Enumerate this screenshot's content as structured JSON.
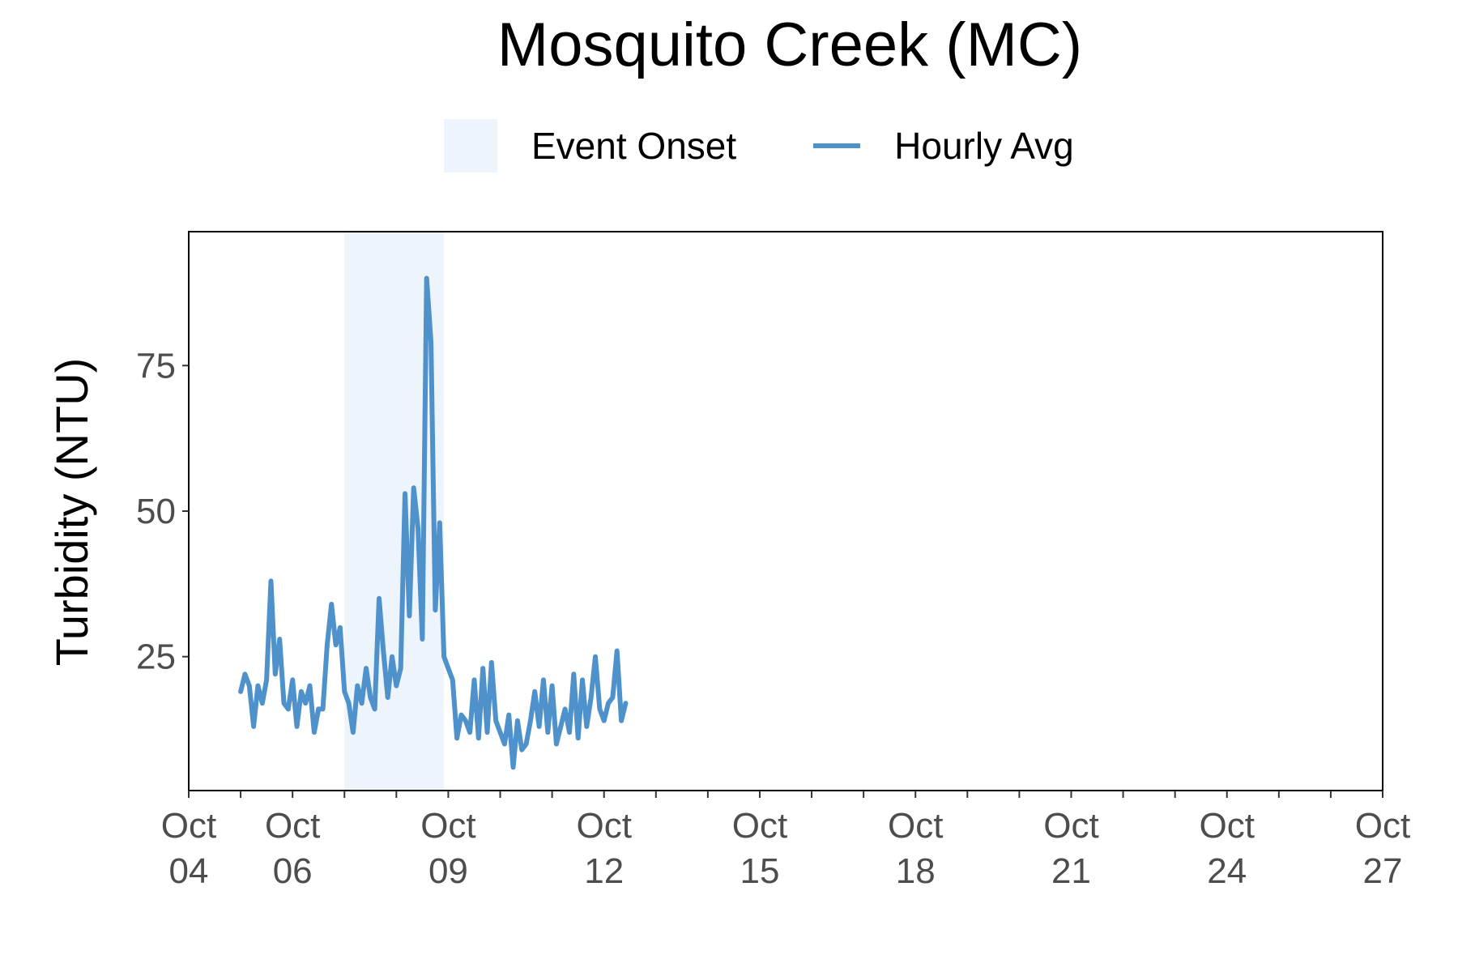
{
  "chart_data": {
    "type": "line",
    "title": "Mosquito Creek (MC)",
    "xlabel": "",
    "ylabel": "Turbidity (NTU)",
    "xlim": [
      "2023-10-04",
      "2023-10-27"
    ],
    "ylim": [
      2,
      98
    ],
    "y_ticks": [
      25,
      50,
      75
    ],
    "x_ticks": [
      {
        "date": "2023-10-04",
        "label": "Oct\n04"
      },
      {
        "date": "2023-10-06",
        "label": "Oct\n06"
      },
      {
        "date": "2023-10-09",
        "label": "Oct\n09"
      },
      {
        "date": "2023-10-12",
        "label": "Oct\n12"
      },
      {
        "date": "2023-10-15",
        "label": "Oct\n15"
      },
      {
        "date": "2023-10-18",
        "label": "Oct\n18"
      },
      {
        "date": "2023-10-21",
        "label": "Oct\n21"
      },
      {
        "date": "2023-10-24",
        "label": "Oct\n24"
      },
      {
        "date": "2023-10-27",
        "label": "Oct\n27"
      }
    ],
    "minor_x_ticks": [
      "2023-10-05",
      "2023-10-07",
      "2023-10-08",
      "2023-10-10",
      "2023-10-11",
      "2023-10-13",
      "2023-10-14",
      "2023-10-16",
      "2023-10-17",
      "2023-10-19",
      "2023-10-20",
      "2023-10-22",
      "2023-10-23",
      "2023-10-25",
      "2023-10-26"
    ],
    "grid": false,
    "legend_position": "top",
    "legend": [
      {
        "label": "Event Onset",
        "kind": "fill",
        "color": "#edf4fb"
      },
      {
        "label": "Hourly Avg",
        "kind": "line",
        "color": "#4e91cb"
      }
    ],
    "shaded_region": {
      "name": "Event Onset",
      "x_start": "2023-10-07 00:00",
      "x_end": "2023-10-08 22:00",
      "color": "#edf4fb"
    },
    "series": [
      {
        "name": "Hourly Avg",
        "color": "#4e91cb",
        "x": [
          "2023-10-05 00:00",
          "2023-10-05 02:00",
          "2023-10-05 04:00",
          "2023-10-05 06:00",
          "2023-10-05 08:00",
          "2023-10-05 10:00",
          "2023-10-05 12:00",
          "2023-10-05 14:00",
          "2023-10-05 16:00",
          "2023-10-05 18:00",
          "2023-10-05 20:00",
          "2023-10-05 22:00",
          "2023-10-06 00:00",
          "2023-10-06 02:00",
          "2023-10-06 04:00",
          "2023-10-06 06:00",
          "2023-10-06 08:00",
          "2023-10-06 10:00",
          "2023-10-06 12:00",
          "2023-10-06 14:00",
          "2023-10-06 16:00",
          "2023-10-06 18:00",
          "2023-10-06 20:00",
          "2023-10-06 22:00",
          "2023-10-07 00:00",
          "2023-10-07 02:00",
          "2023-10-07 04:00",
          "2023-10-07 06:00",
          "2023-10-07 08:00",
          "2023-10-07 10:00",
          "2023-10-07 12:00",
          "2023-10-07 14:00",
          "2023-10-07 16:00",
          "2023-10-07 18:00",
          "2023-10-07 20:00",
          "2023-10-07 22:00",
          "2023-10-08 00:00",
          "2023-10-08 02:00",
          "2023-10-08 04:00",
          "2023-10-08 06:00",
          "2023-10-08 08:00",
          "2023-10-08 10:00",
          "2023-10-08 12:00",
          "2023-10-08 14:00",
          "2023-10-08 16:00",
          "2023-10-08 18:00",
          "2023-10-08 20:00",
          "2023-10-08 22:00",
          "2023-10-09 00:00",
          "2023-10-09 02:00",
          "2023-10-09 04:00",
          "2023-10-09 06:00",
          "2023-10-09 08:00",
          "2023-10-09 10:00",
          "2023-10-09 12:00",
          "2023-10-09 14:00",
          "2023-10-09 16:00",
          "2023-10-09 18:00",
          "2023-10-09 20:00",
          "2023-10-09 22:00",
          "2023-10-10 00:00",
          "2023-10-10 02:00",
          "2023-10-10 04:00",
          "2023-10-10 06:00",
          "2023-10-10 08:00",
          "2023-10-10 10:00",
          "2023-10-10 12:00",
          "2023-10-10 14:00",
          "2023-10-10 16:00",
          "2023-10-10 18:00",
          "2023-10-10 20:00",
          "2023-10-10 22:00",
          "2023-10-11 00:00",
          "2023-10-11 02:00",
          "2023-10-11 04:00",
          "2023-10-11 06:00",
          "2023-10-11 08:00",
          "2023-10-11 10:00",
          "2023-10-11 12:00",
          "2023-10-11 14:00",
          "2023-10-11 16:00",
          "2023-10-11 18:00",
          "2023-10-11 20:00",
          "2023-10-11 22:00",
          "2023-10-12 00:00",
          "2023-10-12 02:00",
          "2023-10-12 04:00",
          "2023-10-12 06:00",
          "2023-10-12 08:00",
          "2023-10-12 10:00"
        ],
        "values": [
          19,
          22,
          20,
          13,
          20,
          17,
          21,
          38,
          22,
          28,
          17,
          16,
          21,
          13,
          19,
          17,
          20,
          12,
          16,
          16,
          27,
          34,
          27,
          30,
          19,
          17,
          12,
          20,
          17,
          23,
          18,
          16,
          35,
          26,
          18,
          25,
          20,
          23,
          53,
          32,
          54,
          47,
          28,
          90,
          79,
          33,
          48,
          25,
          23,
          21,
          11,
          15,
          14,
          12,
          21,
          11,
          23,
          12,
          24,
          14,
          12,
          10,
          15,
          6,
          14,
          9,
          10,
          14,
          19,
          13,
          21,
          12,
          20,
          10,
          13,
          16,
          12,
          22,
          11,
          21,
          13,
          18,
          25,
          16,
          14,
          17,
          18,
          26,
          14,
          17
        ]
      }
    ]
  }
}
